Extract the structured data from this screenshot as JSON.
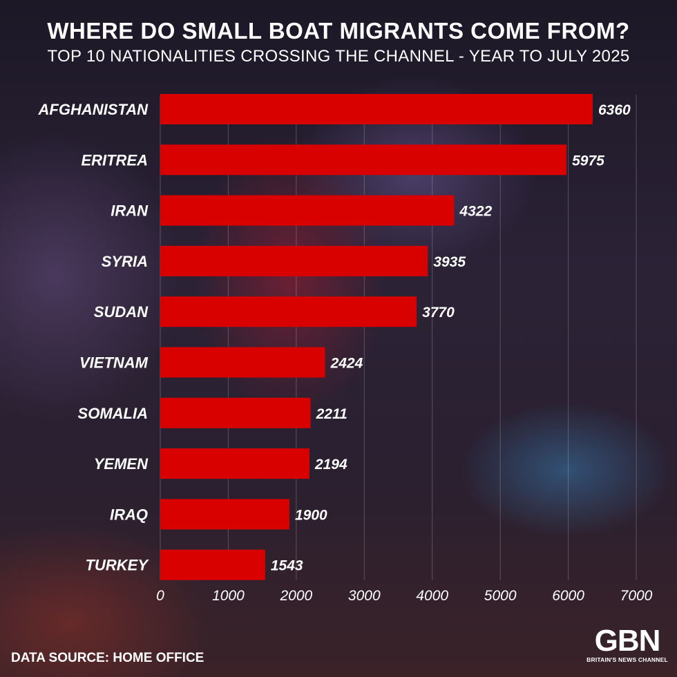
{
  "header": {
    "title": "WHERE DO SMALL BOAT MIGRANTS COME FROM?",
    "subtitle": "TOP 10 NATIONALITIES CROSSING THE CHANNEL - YEAR TO JULY 2025"
  },
  "footer": {
    "source": "DATA SOURCE: HOME OFFICE",
    "logo_text": "GBN",
    "logo_tagline": "BRITAIN'S NEWS CHANNEL"
  },
  "chart_data": {
    "type": "bar",
    "orientation": "horizontal",
    "categories": [
      "AFGHANISTAN",
      "ERITREA",
      "IRAN",
      "SYRIA",
      "SUDAN",
      "VIETNAM",
      "SOMALIA",
      "YEMEN",
      "IRAQ",
      "TURKEY"
    ],
    "values": [
      6360,
      5975,
      4322,
      3935,
      3770,
      2424,
      2211,
      2194,
      1900,
      1543
    ],
    "xlim": [
      0,
      7000
    ],
    "xticks": [
      0,
      1000,
      2000,
      3000,
      4000,
      5000,
      6000,
      7000
    ],
    "grid": true,
    "bar_color": "#d90000"
  }
}
